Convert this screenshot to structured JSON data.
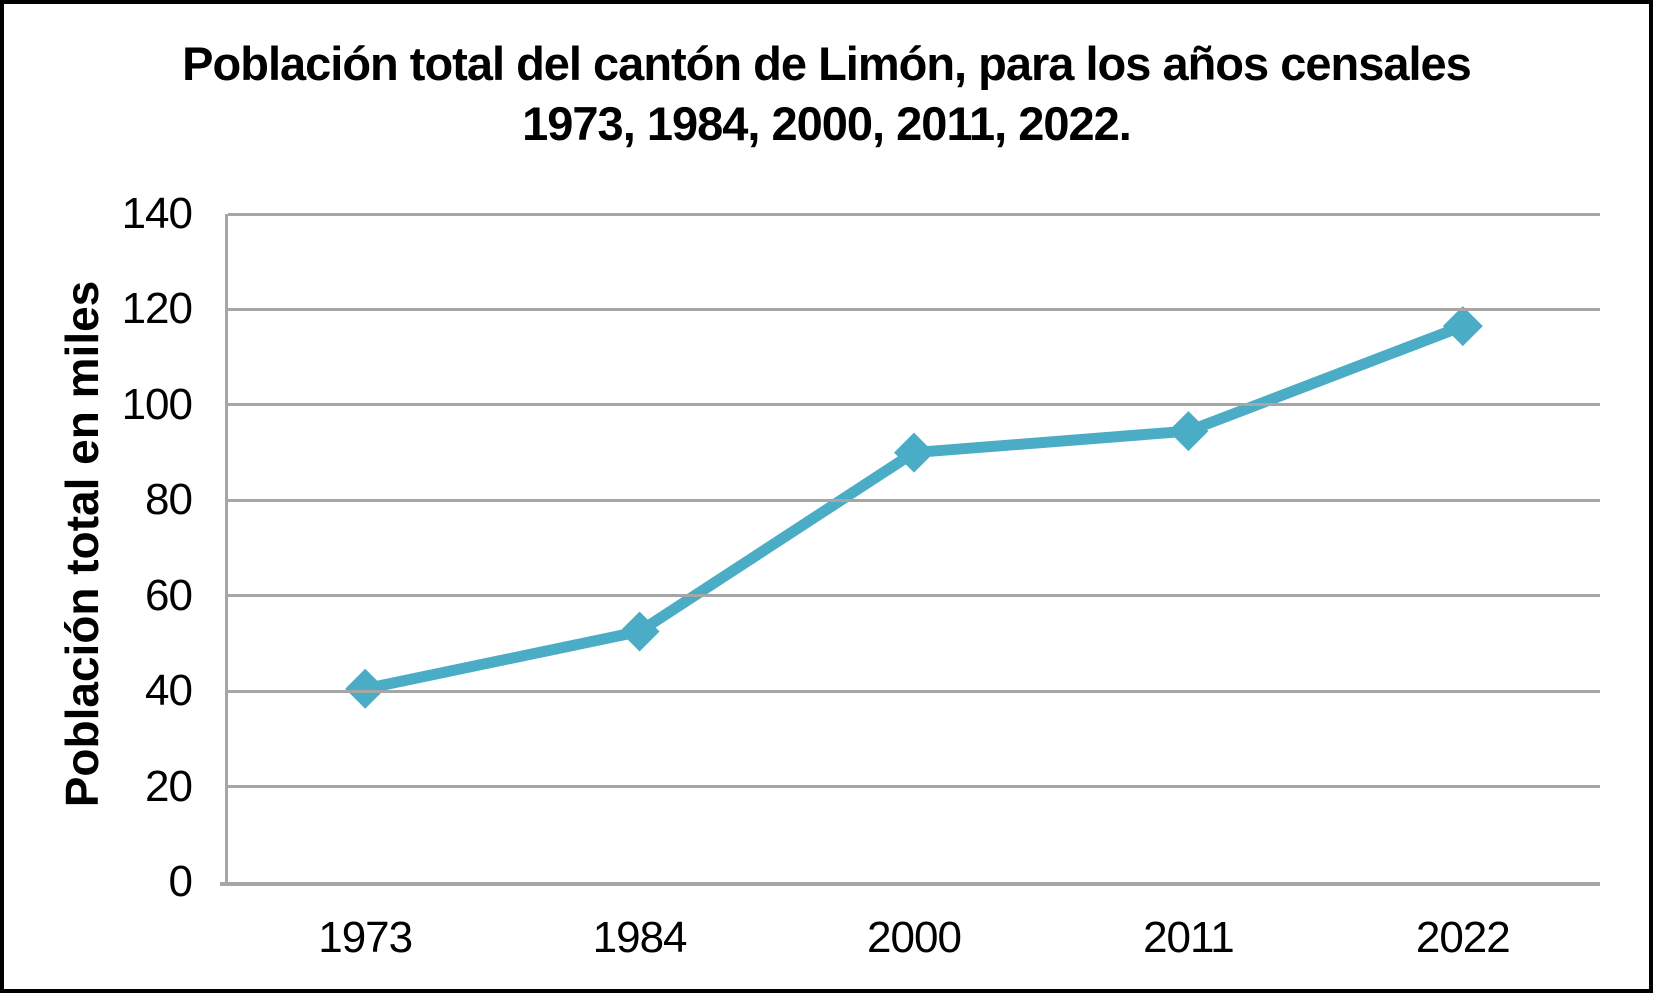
{
  "title": {
    "line1": "Población total del cantón de Limón, para los años censales",
    "line2": "1973, 1984, 2000, 2011, 2022."
  },
  "chart_data": {
    "type": "line",
    "title": "Población total del cantón de Limón, para los años censales 1973, 1984, 2000, 2011, 2022.",
    "categories": [
      "1973",
      "1984",
      "2000",
      "2011",
      "2022"
    ],
    "series": [
      {
        "name": "Población total",
        "values": [
          40.5,
          52.5,
          90,
          94.5,
          116.5
        ],
        "color": "#4BACC6",
        "marker": "diamond",
        "line_width": 11
      }
    ],
    "xlabel": "",
    "ylabel": "Población total en miles",
    "ylim": [
      0,
      140
    ],
    "yticks": [
      0,
      20,
      40,
      60,
      80,
      100,
      120,
      140
    ],
    "grid": "horizontal",
    "legend": "none"
  },
  "colors": {
    "line": "#4BACC6",
    "gridline": "#a6a6a6",
    "axis": "#a6a6a6",
    "text": "#000000",
    "background": "#ffffff",
    "frame_border": "#000000"
  }
}
